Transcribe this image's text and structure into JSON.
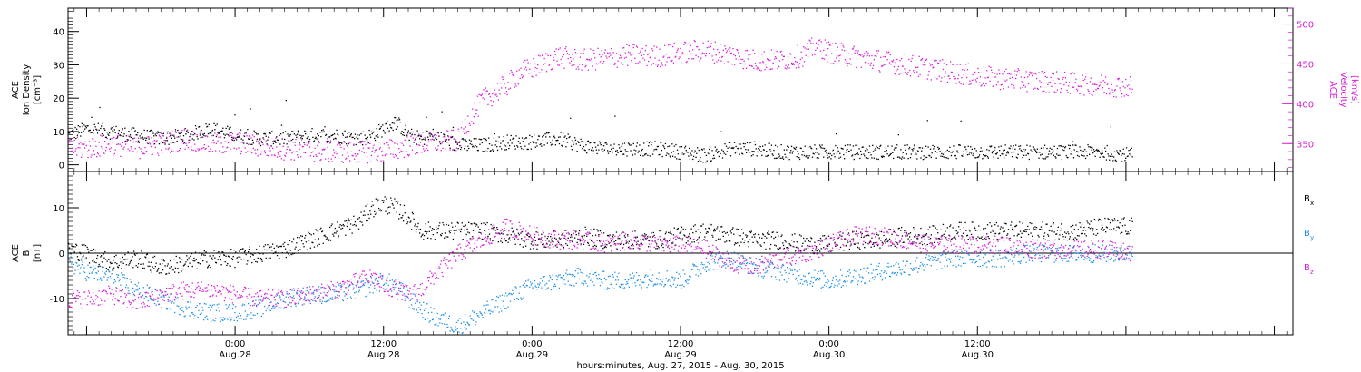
{
  "colors": {
    "black": "#000000",
    "magenta": "#d81ed8",
    "blue": "#1e90e6",
    "frame": "#000000"
  },
  "x_axis": {
    "label": "hours:minutes, Aug. 27, 2015 - Aug. 30, 2015",
    "range_hours": [
      -13.5,
      85.5
    ],
    "ticks": [
      {
        "hours": 0,
        "time": "0:00",
        "date": "Aug.28"
      },
      {
        "hours": 12,
        "time": "12:00",
        "date": "Aug.28"
      },
      {
        "hours": 24,
        "time": "0:00",
        "date": "Aug.29"
      },
      {
        "hours": 36,
        "time": "12:00",
        "date": "Aug.29"
      },
      {
        "hours": 48,
        "time": "0:00",
        "date": "Aug.30"
      },
      {
        "hours": 60,
        "time": "12:00",
        "date": "Aug.30"
      }
    ],
    "data_end_hours": 72.5
  },
  "chart_data": [
    {
      "type": "scatter",
      "panel": "top",
      "left_axis": {
        "label_lines": [
          "ACE",
          "Ion Density",
          "[cm⁻³]"
        ],
        "range": [
          -2,
          47
        ],
        "ticks": [
          0,
          10,
          20,
          30,
          40
        ]
      },
      "right_axis": {
        "label_lines": [
          "ACE",
          "Velocity",
          "[km/s]"
        ],
        "range": [
          315,
          520
        ],
        "ticks": [
          350,
          400,
          450,
          500
        ]
      },
      "series": [
        {
          "axis": "left",
          "color": "#000000",
          "points": [
            [
              -13.5,
              9
            ],
            [
              -12,
              11
            ],
            [
              -10,
              10
            ],
            [
              -8,
              9
            ],
            [
              -6,
              8
            ],
            [
              -4,
              9
            ],
            [
              -2,
              11
            ],
            [
              0,
              9
            ],
            [
              2,
              8
            ],
            [
              4,
              8
            ],
            [
              6,
              9
            ],
            [
              8,
              9
            ],
            [
              10,
              8
            ],
            [
              11,
              9
            ],
            [
              12,
              11
            ],
            [
              13,
              13
            ],
            [
              14,
              9
            ],
            [
              15,
              8
            ],
            [
              16,
              9
            ],
            [
              18,
              6
            ],
            [
              20,
              6
            ],
            [
              22,
              7
            ],
            [
              24,
              7
            ],
            [
              26,
              8
            ],
            [
              28,
              6
            ],
            [
              30,
              5
            ],
            [
              32,
              5
            ],
            [
              34,
              5
            ],
            [
              36,
              4
            ],
            [
              38,
              3
            ],
            [
              40,
              5
            ],
            [
              42,
              5
            ],
            [
              44,
              4
            ],
            [
              46,
              4
            ],
            [
              48,
              4
            ],
            [
              50,
              4
            ],
            [
              52,
              4
            ],
            [
              54,
              4
            ],
            [
              56,
              4
            ],
            [
              58,
              4
            ],
            [
              60,
              4
            ],
            [
              62,
              4
            ],
            [
              64,
              4
            ],
            [
              66,
              4
            ],
            [
              68,
              4
            ],
            [
              70,
              4
            ],
            [
              72.5,
              3
            ]
          ]
        },
        {
          "axis": "right",
          "color": "#d81ed8",
          "points": [
            [
              -13.5,
              345
            ],
            [
              -12,
              345
            ],
            [
              -10,
              350
            ],
            [
              -8,
              345
            ],
            [
              -6,
              350
            ],
            [
              -4,
              357
            ],
            [
              -2,
              350
            ],
            [
              0,
              352
            ],
            [
              2,
              347
            ],
            [
              4,
              344
            ],
            [
              6,
              342
            ],
            [
              8,
              340
            ],
            [
              10,
              340
            ],
            [
              12,
              341
            ],
            [
              14,
              348
            ],
            [
              16,
              352
            ],
            [
              18,
              355
            ],
            [
              19,
              385
            ],
            [
              20,
              405
            ],
            [
              22,
              425
            ],
            [
              23,
              440
            ],
            [
              24,
              445
            ],
            [
              26,
              460
            ],
            [
              28,
              455
            ],
            [
              30,
              458
            ],
            [
              32,
              462
            ],
            [
              34,
              460
            ],
            [
              36,
              465
            ],
            [
              38,
              468
            ],
            [
              40,
              462
            ],
            [
              42,
              455
            ],
            [
              44,
              455
            ],
            [
              46,
              462
            ],
            [
              47,
              475
            ],
            [
              48,
              465
            ],
            [
              50,
              460
            ],
            [
              52,
              455
            ],
            [
              54,
              450
            ],
            [
              56,
              445
            ],
            [
              58,
              440
            ],
            [
              60,
              435
            ],
            [
              62,
              432
            ],
            [
              64,
              430
            ],
            [
              66,
              428
            ],
            [
              68,
              426
            ],
            [
              70,
              424
            ],
            [
              72.5,
              422
            ]
          ]
        }
      ]
    },
    {
      "type": "scatter",
      "panel": "bottom",
      "left_axis": {
        "label_lines": [
          "ACE",
          "B",
          "[nT]"
        ],
        "range": [
          -18,
          18
        ],
        "ticks": [
          -10,
          0,
          10
        ]
      },
      "zero_line": 0,
      "series": [
        {
          "name": "Bx",
          "color": "#000000",
          "points": [
            [
              -13.5,
              1
            ],
            [
              -12,
              0
            ],
            [
              -10,
              -2
            ],
            [
              -8,
              -1
            ],
            [
              -6,
              -3
            ],
            [
              -4,
              -2
            ],
            [
              -2,
              -1
            ],
            [
              0,
              -1
            ],
            [
              2,
              0
            ],
            [
              4,
              1
            ],
            [
              6,
              3
            ],
            [
              8,
              5
            ],
            [
              10,
              7
            ],
            [
              11,
              10
            ],
            [
              12,
              11
            ],
            [
              13,
              10
            ],
            [
              14,
              8
            ],
            [
              15,
              5
            ],
            [
              16,
              5
            ],
            [
              18,
              5
            ],
            [
              20,
              5
            ],
            [
              22,
              4
            ],
            [
              24,
              3
            ],
            [
              26,
              3
            ],
            [
              28,
              4
            ],
            [
              30,
              3
            ],
            [
              32,
              3
            ],
            [
              34,
              3
            ],
            [
              36,
              4
            ],
            [
              38,
              5
            ],
            [
              40,
              4
            ],
            [
              42,
              3
            ],
            [
              44,
              3
            ],
            [
              46,
              2
            ],
            [
              48,
              2
            ],
            [
              50,
              3
            ],
            [
              52,
              3
            ],
            [
              54,
              4
            ],
            [
              56,
              4
            ],
            [
              58,
              5
            ],
            [
              60,
              5
            ],
            [
              62,
              5
            ],
            [
              64,
              5
            ],
            [
              66,
              5
            ],
            [
              68,
              5
            ],
            [
              70,
              6
            ],
            [
              72.5,
              6
            ]
          ]
        },
        {
          "name": "By",
          "color": "#1e90e6",
          "points": [
            [
              -13.5,
              -2
            ],
            [
              -12,
              -4
            ],
            [
              -10,
              -5
            ],
            [
              -8,
              -8
            ],
            [
              -6,
              -10
            ],
            [
              -4,
              -12
            ],
            [
              -2,
              -13
            ],
            [
              0,
              -13
            ],
            [
              2,
              -12
            ],
            [
              4,
              -10
            ],
            [
              6,
              -9
            ],
            [
              8,
              -9
            ],
            [
              10,
              -8
            ],
            [
              11,
              -7
            ],
            [
              12,
              -6
            ],
            [
              13,
              -7
            ],
            [
              14,
              -10
            ],
            [
              15,
              -12
            ],
            [
              16,
              -14
            ],
            [
              18,
              -16
            ],
            [
              20,
              -13
            ],
            [
              22,
              -10
            ],
            [
              24,
              -7
            ],
            [
              26,
              -6
            ],
            [
              28,
              -5
            ],
            [
              30,
              -6
            ],
            [
              32,
              -6
            ],
            [
              34,
              -5
            ],
            [
              36,
              -6
            ],
            [
              38,
              -2
            ],
            [
              40,
              -1
            ],
            [
              42,
              -3
            ],
            [
              44,
              -4
            ],
            [
              46,
              -5
            ],
            [
              48,
              -6
            ],
            [
              50,
              -5
            ],
            [
              52,
              -4
            ],
            [
              54,
              -3
            ],
            [
              56,
              -2
            ],
            [
              58,
              -1
            ],
            [
              60,
              -1
            ],
            [
              62,
              -1
            ],
            [
              64,
              0
            ],
            [
              66,
              0
            ],
            [
              68,
              0
            ],
            [
              70,
              0
            ],
            [
              72.5,
              0
            ]
          ]
        },
        {
          "name": "Bz",
          "color": "#d81ed8",
          "points": [
            [
              -13.5,
              -10
            ],
            [
              -12,
              -10
            ],
            [
              -10,
              -9
            ],
            [
              -8,
              -11
            ],
            [
              -6,
              -9
            ],
            [
              -4,
              -8
            ],
            [
              -2,
              -8
            ],
            [
              0,
              -9
            ],
            [
              2,
              -10
            ],
            [
              4,
              -10
            ],
            [
              6,
              -9
            ],
            [
              8,
              -8
            ],
            [
              10,
              -6
            ],
            [
              11,
              -5
            ],
            [
              12,
              -7
            ],
            [
              13,
              -8
            ],
            [
              14,
              -9
            ],
            [
              15,
              -8
            ],
            [
              16,
              -5
            ],
            [
              18,
              0
            ],
            [
              20,
              3
            ],
            [
              22,
              6
            ],
            [
              24,
              4
            ],
            [
              26,
              3
            ],
            [
              28,
              3
            ],
            [
              30,
              2
            ],
            [
              32,
              3
            ],
            [
              34,
              2
            ],
            [
              36,
              2
            ],
            [
              38,
              1
            ],
            [
              40,
              -2
            ],
            [
              42,
              -3
            ],
            [
              44,
              -1
            ],
            [
              46,
              0
            ],
            [
              48,
              2
            ],
            [
              50,
              4
            ],
            [
              52,
              4
            ],
            [
              54,
              3
            ],
            [
              56,
              2
            ],
            [
              58,
              2
            ],
            [
              60,
              2
            ],
            [
              62,
              2
            ],
            [
              64,
              1
            ],
            [
              66,
              1
            ],
            [
              68,
              1
            ],
            [
              70,
              1
            ],
            [
              72.5,
              0
            ]
          ]
        }
      ],
      "legend": [
        {
          "name": "B",
          "sub": "x",
          "color": "#000000"
        },
        {
          "name": "B",
          "sub": "y",
          "color": "#1e90e6"
        },
        {
          "name": "B",
          "sub": "z",
          "color": "#d81ed8"
        }
      ]
    }
  ]
}
